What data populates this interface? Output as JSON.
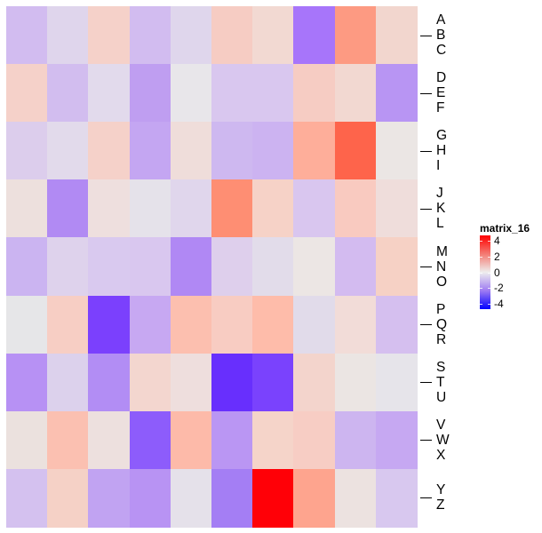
{
  "chart_data": {
    "type": "heatmap",
    "title": "",
    "legend": {
      "title": "matrix_16",
      "ticks": [
        4,
        2,
        0,
        -2,
        -4
      ],
      "colors": {
        "low": "#0000FF",
        "mid": "#EEEEEE",
        "high": "#FF0000"
      },
      "range": [
        -4,
        4
      ]
    },
    "row_groups": [
      {
        "labels": [
          "A",
          "B",
          "C"
        ]
      },
      {
        "labels": [
          "D",
          "E",
          "F"
        ]
      },
      {
        "labels": [
          "G",
          "H",
          "I"
        ]
      },
      {
        "labels": [
          "J",
          "K",
          "L"
        ]
      },
      {
        "labels": [
          "M",
          "N",
          "O"
        ]
      },
      {
        "labels": [
          "P",
          "Q",
          "R"
        ]
      },
      {
        "labels": [
          "S",
          "T",
          "U"
        ]
      },
      {
        "labels": [
          "V",
          "W",
          "X"
        ]
      },
      {
        "labels": [
          "Y",
          "Z"
        ]
      }
    ],
    "n_cols": 10,
    "values": [
      [
        -1.2,
        -0.5,
        0.6,
        -1.2,
        -0.4,
        0.7,
        0.4,
        -2.6,
        2.0,
        0.5
      ],
      [
        0.6,
        -1.2,
        -0.4,
        -1.8,
        -0.1,
        -0.8,
        -0.8,
        0.7,
        0.5,
        -1.9
      ],
      [
        -0.7,
        -0.4,
        0.6,
        -1.6,
        0.3,
        -1.3,
        -1.4,
        1.6,
        3.0,
        0.1
      ],
      [
        0.3,
        -2.0,
        0.3,
        -0.2,
        -0.5,
        2.2,
        0.7,
        -0.9,
        0.8,
        0.3
      ],
      [
        -1.3,
        -0.6,
        -0.9,
        -0.9,
        -2.0,
        -0.6,
        -0.3,
        0.1,
        -1.2,
        0.7
      ],
      [
        -0.1,
        0.8,
        -3.1,
        -1.5,
        1.1,
        0.8,
        1.1,
        -0.3,
        0.4,
        -1.1
      ],
      [
        -1.8,
        -0.6,
        -1.9,
        0.5,
        0.3,
        -3.4,
        -2.9,
        0.6,
        0.1,
        -0.1
      ],
      [
        0.2,
        1.0,
        0.3,
        -2.5,
        1.1,
        -1.7,
        0.7,
        0.8,
        -1.3,
        -1.5
      ],
      [
        -1.0,
        0.6,
        -1.5,
        -1.8,
        -0.2,
        -2.1,
        4.0,
        1.5,
        0.2,
        -0.9
      ]
    ],
    "cell_colors": [
      [
        "#D2BCF0",
        "#DFD5EC",
        "#F5D1C9",
        "#D2BCF0",
        "#DFD6EC",
        "#F6CCC3",
        "#F2D9D2",
        "#A775FA",
        "#FD9A82",
        "#F2D6CE"
      ],
      [
        "#F5D1C9",
        "#D2BDEF",
        "#E2DAEC",
        "#BF9EF1",
        "#E8E6EA",
        "#D9C7EF",
        "#D9C7EF",
        "#F6CCC3",
        "#F2D8D1",
        "#B895F3"
      ],
      [
        "#DCCDEC",
        "#E2DAEB",
        "#F5D1C9",
        "#C4A6F2",
        "#EFDDDA",
        "#CEB8F0",
        "#CCB3F1",
        "#FEAE9A",
        "#FE644B",
        "#EBE6E4"
      ],
      [
        "#EDE0DD",
        "#B18AF3",
        "#EEDFDE",
        "#E5E2EA",
        "#E0D6EC",
        "#FE8E73",
        "#F6D2C7",
        "#D9C6EF",
        "#F9CAC0",
        "#EFDDDB"
      ],
      [
        "#CBB4F1",
        "#DED2EC",
        "#D9C9EF",
        "#D9C7EF",
        "#B088F4",
        "#DECFEC",
        "#E2DCEA",
        "#ECE6E4",
        "#D3BBF0",
        "#F6D1C5"
      ],
      [
        "#E6E6E8",
        "#F7CEC4",
        "#7B40FD",
        "#C7A8F2",
        "#FCBFAF",
        "#F8CCC2",
        "#FEBCAA",
        "#E1DBEA",
        "#F2DCD8",
        "#D5BFEF"
      ],
      [
        "#B791F4",
        "#DCD1EC",
        "#B28DF4",
        "#F3D6CF",
        "#EEDEDD",
        "#682FFD",
        "#7A42FD",
        "#F3D4CC",
        "#EBE5E3",
        "#E6E4EA"
      ],
      [
        "#EBE1DE",
        "#FBC0B1",
        "#EDE0DE",
        "#8D5CFB",
        "#FDBAA9",
        "#BA96F3",
        "#F5D4C9",
        "#F7CDC4",
        "#CDB5F0",
        "#C6A8F2"
      ],
      [
        "#D4C1EF",
        "#F5D1C6",
        "#C1A3F2",
        "#B893F3",
        "#E5E1EA",
        "#A47EF4",
        "#FF0007",
        "#FEA48E",
        "#ECE2E0",
        "#D8C8EF"
      ]
    ]
  }
}
